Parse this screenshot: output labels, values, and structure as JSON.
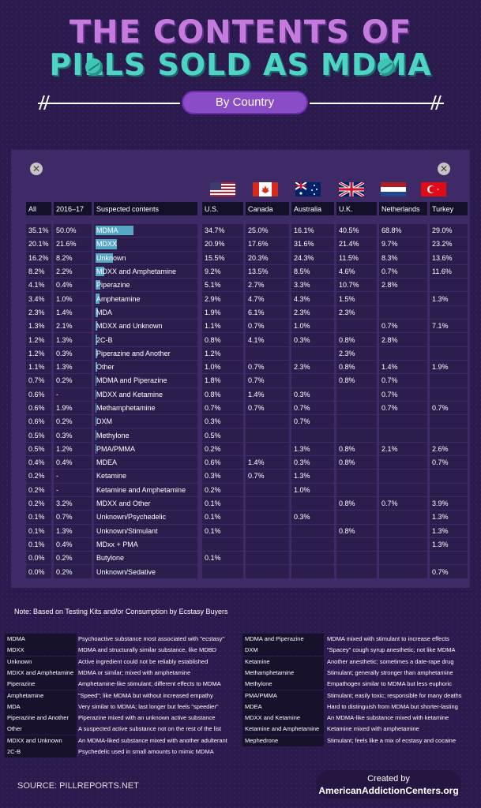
{
  "header": {
    "title_line1": "THE CONTENTS OF",
    "title_line2": "PILLS SOLD AS MDMA",
    "subtitle": "By Country"
  },
  "colors": {
    "teal": "#4fd3c4",
    "purple": "#c47bdd",
    "bar": "#5ec0d8",
    "background": "#2b1a4d"
  },
  "chart_data": {
    "type": "table",
    "columns": [
      "All",
      "2016–17",
      "Suspected contents",
      "U.S.",
      "Canada",
      "Australia",
      "U.K.",
      "Netherlands",
      "Turkey"
    ],
    "rows": [
      {
        "all": "35.1%",
        "prev": "50.0%",
        "name": "MDMA",
        "us": "34.7%",
        "ca": "25.0%",
        "au": "16.1%",
        "uk": "40.5%",
        "nl": "68.8%",
        "tr": "29.0%",
        "share": 35.1
      },
      {
        "all": "20.1%",
        "prev": "21.6%",
        "name": "MDXX",
        "us": "20.9%",
        "ca": "17.6%",
        "au": "31.6%",
        "uk": "21.4%",
        "nl": "9.7%",
        "tr": "23.2%",
        "share": 20.1
      },
      {
        "all": "16.2%",
        "prev": "8.2%",
        "name": "Unknown",
        "us": "15.5%",
        "ca": "20.3%",
        "au": "24.3%",
        "uk": "11.5%",
        "nl": "8.3%",
        "tr": "13.6%",
        "share": 16.2
      },
      {
        "all": "8.2%",
        "prev": "2.2%",
        "name": "MDXX and Amphetamine",
        "us": "9.2%",
        "ca": "13.5%",
        "au": "8.5%",
        "uk": "4.6%",
        "nl": "0.7%",
        "tr": "11.6%",
        "share": 8.2
      },
      {
        "all": "4.1%",
        "prev": "0.4%",
        "name": "Piperazine",
        "us": "5.1%",
        "ca": "2.7%",
        "au": "3.3%",
        "uk": "10.7%",
        "nl": "2.8%",
        "tr": "",
        "share": 4.1
      },
      {
        "all": "3.4%",
        "prev": "1.0%",
        "name": "Amphetamine",
        "us": "2.9%",
        "ca": "4.7%",
        "au": "4.3%",
        "uk": "1.5%",
        "nl": "",
        "tr": "1.3%",
        "share": 3.4
      },
      {
        "all": "2.3%",
        "prev": "1.4%",
        "name": "MDA",
        "us": "1.9%",
        "ca": "6.1%",
        "au": "2.3%",
        "uk": "2.3%",
        "nl": "",
        "tr": "",
        "share": 2.3
      },
      {
        "all": "1.3%",
        "prev": "2.1%",
        "name": "MDXX and Unknown",
        "us": "1.1%",
        "ca": "0.7%",
        "au": "1.0%",
        "uk": "",
        "nl": "0.7%",
        "tr": "7.1%",
        "share": 1.3
      },
      {
        "all": "1.2%",
        "prev": "1.3%",
        "name": "2C-B",
        "us": "0.8%",
        "ca": "4.1%",
        "au": "0.3%",
        "uk": "0.8%",
        "nl": "2.8%",
        "tr": "",
        "share": 1.2
      },
      {
        "all": "1.2%",
        "prev": "0.3%",
        "name": "Piperazine and Another",
        "us": "1.2%",
        "ca": "",
        "au": "",
        "uk": "2.3%",
        "nl": "",
        "tr": "",
        "share": 1.2
      },
      {
        "all": "1.1%",
        "prev": "1.3%",
        "name": "Other",
        "us": "1.0%",
        "ca": "0.7%",
        "au": "2.3%",
        "uk": "0.8%",
        "nl": "1.4%",
        "tr": "1.9%",
        "share": 1.1
      },
      {
        "all": "0.7%",
        "prev": "0.2%",
        "name": "MDMA and Piperazine",
        "us": "1.8%",
        "ca": "0.7%",
        "au": "",
        "uk": "0.8%",
        "nl": "0.7%",
        "tr": "",
        "share": 0.7
      },
      {
        "all": "0.6%",
        "prev": "-",
        "name": "MDXX and Ketamine",
        "us": "0.8%",
        "ca": "1.4%",
        "au": "0.3%",
        "uk": "",
        "nl": "0.7%",
        "tr": "",
        "share": 0.6
      },
      {
        "all": "0.6%",
        "prev": "1.9%",
        "name": "Methamphetamine",
        "us": "0.7%",
        "ca": "0.7%",
        "au": "0.7%",
        "uk": "",
        "nl": "0.7%",
        "tr": "0.7%",
        "share": 0.6
      },
      {
        "all": "0.6%",
        "prev": "0.2%",
        "name": "DXM",
        "us": "0.3%",
        "ca": "",
        "au": "0.7%",
        "uk": "",
        "nl": "",
        "tr": "",
        "share": 0.6
      },
      {
        "all": "0.5%",
        "prev": "0.3%",
        "name": "Methylone",
        "us": "0.5%",
        "ca": "",
        "au": "",
        "uk": "",
        "nl": "",
        "tr": "",
        "share": 0.5
      },
      {
        "all": "0.5%",
        "prev": "1.2%",
        "name": "PMA/PMMA",
        "us": "0.2%",
        "ca": "",
        "au": "1.3%",
        "uk": "0.8%",
        "nl": "2.1%",
        "tr": "2.6%",
        "share": 0.5
      },
      {
        "all": "0.4%",
        "prev": "0.4%",
        "name": "MDEA",
        "us": "0.6%",
        "ca": "1.4%",
        "au": "0.3%",
        "uk": "0.8%",
        "nl": "",
        "tr": "0.7%",
        "share": 0.4
      },
      {
        "all": "0.2%",
        "prev": "-",
        "name": "Ketamine",
        "us": "0.3%",
        "ca": "0.7%",
        "au": "1.3%",
        "uk": "",
        "nl": "",
        "tr": "",
        "share": 0.2
      },
      {
        "all": "0.2%",
        "prev": "-",
        "name": "Ketamine and Amphetamine",
        "us": "0.2%",
        "ca": "",
        "au": "1.0%",
        "uk": "",
        "nl": "",
        "tr": "",
        "share": 0.2
      },
      {
        "all": "0.2%",
        "prev": "3.2%",
        "name": "MDXX and Other",
        "us": "0.1%",
        "ca": "",
        "au": "",
        "uk": "0.8%",
        "nl": "0.7%",
        "tr": "3.9%",
        "share": 0.2
      },
      {
        "all": "0.1%",
        "prev": "0.7%",
        "name": "Unknown/Psychedelic",
        "us": "0.1%",
        "ca": "",
        "au": "0.3%",
        "uk": "",
        "nl": "",
        "tr": "1.3%",
        "share": 0.1
      },
      {
        "all": "0.1%",
        "prev": "1.3%",
        "name": "Unknown/Stimulant",
        "us": "0.1%",
        "ca": "",
        "au": "",
        "uk": "0.8%",
        "nl": "",
        "tr": "1.3%",
        "share": 0.1
      },
      {
        "all": "0.1%",
        "prev": "0.4%",
        "name": "MDxx + PMA",
        "us": "",
        "ca": "",
        "au": "",
        "uk": "",
        "nl": "",
        "tr": "1.3%",
        "share": 0.1
      },
      {
        "all": "0.0%",
        "prev": "0.2%",
        "name": "Butylone",
        "us": "0.1%",
        "ca": "",
        "au": "",
        "uk": "",
        "nl": "",
        "tr": "",
        "share": 0.0
      },
      {
        "all": "0.0%",
        "prev": "0.2%",
        "name": "Unknown/Sedative",
        "us": "",
        "ca": "",
        "au": "",
        "uk": "",
        "nl": "",
        "tr": "0.7%",
        "share": 0.0
      }
    ]
  },
  "note": "Note: Based on Testing Kits and/or Consumption by Ecstasy Buyers",
  "legend_left": [
    {
      "term": "MDMA",
      "desc": "Psychoactive substance most associated with \"ecstasy\""
    },
    {
      "term": "MDXX",
      "desc": "MDMA and structurally similar substance, like MDBD"
    },
    {
      "term": "Unknown",
      "desc": "Active ingredient could not be reliably established"
    },
    {
      "term": "MDXX and Amphetamine",
      "desc": "MDMA or similar; mixed with amphetamine"
    },
    {
      "term": "Piperazine",
      "desc": "Amphetamine-like stimulant; different effects to MDMA"
    },
    {
      "term": "Amphetamine",
      "desc": "\"Speed\"; like MDMA but without increased empathy"
    },
    {
      "term": "MDA",
      "desc": "Very similar to MDMA; last longer but feels \"speedier\""
    },
    {
      "term": "Piperazine and Another",
      "desc": "Piperazine mixed with an unknown active substance"
    },
    {
      "term": "Other",
      "desc": "A suspected active substance not on the rest of the list"
    },
    {
      "term": "MDXX and Unknown",
      "desc": "An MDMA-liked substance mixed with another adulterant"
    },
    {
      "term": "2C-B",
      "desc": "Psychedelic used in small amounts to mimic MDMA"
    }
  ],
  "legend_right": [
    {
      "term": "MDMA and Piperazine",
      "desc": "MDMA mixed with stimulant to increase effects"
    },
    {
      "term": "DXM",
      "desc": "\"Spacey\" cough syrup anesthetic; not like MDMA"
    },
    {
      "term": "Ketamine",
      "desc": "Another anesthetic; sometimes a date-rape drug"
    },
    {
      "term": "Methamphetamine",
      "desc": "Stimulant; generally stronger than amphetamine"
    },
    {
      "term": "Methylone",
      "desc": "Empathogen similar to MDMA but less euphoric"
    },
    {
      "term": "PMA/PMMA",
      "desc": "Stimulant; easily toxic; responsible for many deaths"
    },
    {
      "term": "MDEA",
      "desc": "Hard to distinguish from MDMA but shorter-lasting"
    },
    {
      "term": "MDXX and Ketamine",
      "desc": "An MDMA-like substance mixed with ketamine"
    },
    {
      "term": "Ketamine and Amphetamine",
      "desc": "Ketamine mixed with amphetamine"
    },
    {
      "term": "Mephedrone",
      "desc": "Stimulant; feels like a mix of ecstasy and cocaine"
    }
  ],
  "footer": {
    "source": "SOURCE: PILLREPORTS.NET",
    "created_by": "Created by",
    "org": "AmericanAddictionCenters.org"
  }
}
